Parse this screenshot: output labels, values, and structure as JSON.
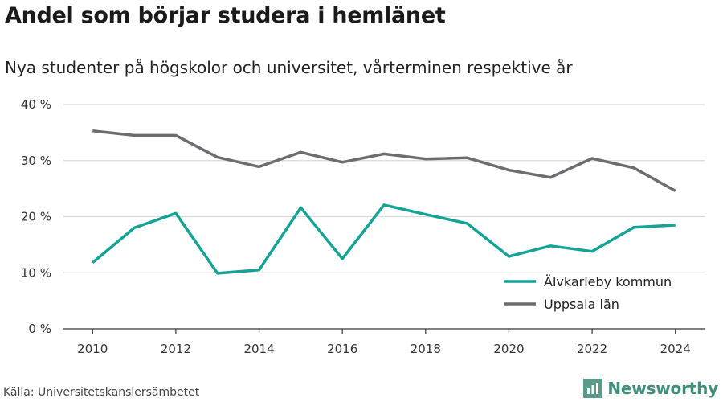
{
  "header": {
    "title": "Andel som börjar studera i hemlänet",
    "subtitle": "Nya studenter på högskolor och universitet, vårterminen respektive år"
  },
  "footer": {
    "source": "Källa: Universitetskanslersämbetet",
    "brand": "Newsworthy",
    "brand_icon": "newsworthy-logo-icon"
  },
  "colors": {
    "series_alvkarleby": "#14a394",
    "series_uppsala": "#6d6c71",
    "grid": "#d9d9d9",
    "brand": "#3f8f7c"
  },
  "chart_data": {
    "type": "line",
    "title": "Andel som börjar studera i hemlänet",
    "subtitle": "Nya studenter på högskolor och universitet, vårterminen respektive år",
    "xlabel": "",
    "ylabel": "",
    "x": [
      2010,
      2011,
      2012,
      2013,
      2014,
      2015,
      2016,
      2017,
      2018,
      2019,
      2020,
      2021,
      2022,
      2023,
      2024
    ],
    "xticks": [
      "2010",
      "2012",
      "2014",
      "2016",
      "2018",
      "2020",
      "2022",
      "2024"
    ],
    "xtick_values": [
      2010,
      2012,
      2014,
      2016,
      2018,
      2020,
      2022,
      2024
    ],
    "yticks": [
      "0 %",
      "10 %",
      "20 %",
      "30 %",
      "40 %"
    ],
    "ytick_values": [
      0,
      10,
      20,
      30,
      40
    ],
    "xlim": [
      2009.3,
      2024.7
    ],
    "ylim": [
      0,
      40
    ],
    "grid": true,
    "legend_position": "bottom-right",
    "series": [
      {
        "name": "Älvkarleby kommun",
        "color": "#14a394",
        "values": [
          11.8,
          18.0,
          20.6,
          9.9,
          10.5,
          21.6,
          12.5,
          22.1,
          20.4,
          18.8,
          12.9,
          14.8,
          13.8,
          18.1,
          18.5
        ]
      },
      {
        "name": "Uppsala län",
        "color": "#6d6c71",
        "values": [
          35.3,
          34.5,
          34.5,
          30.6,
          28.9,
          31.5,
          29.7,
          31.2,
          30.3,
          30.5,
          28.3,
          27.0,
          30.4,
          28.7,
          24.6
        ]
      }
    ]
  }
}
